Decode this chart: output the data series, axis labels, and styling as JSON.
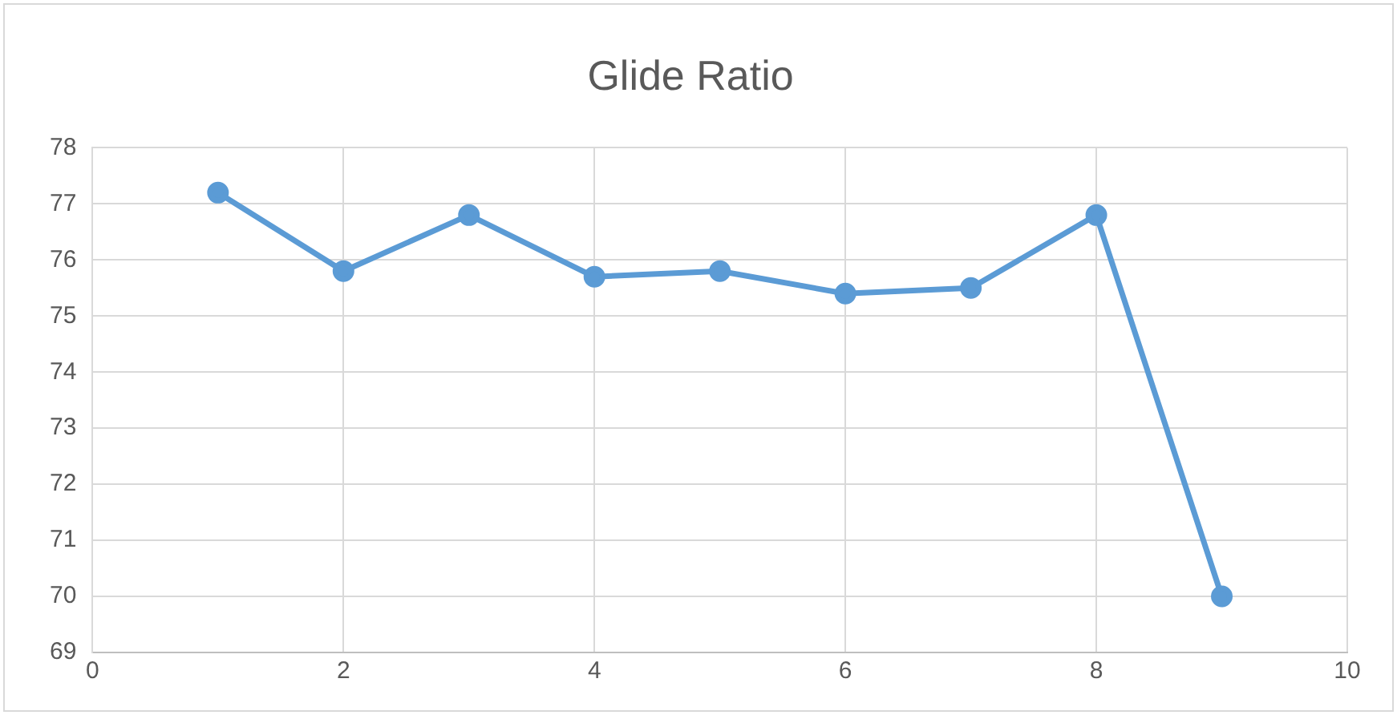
{
  "chart_data": {
    "type": "line",
    "title": "Glide Ratio",
    "x": [
      1,
      2,
      3,
      4,
      5,
      6,
      7,
      8,
      9
    ],
    "series": [
      {
        "color": "#5b9bd5",
        "values": [
          77.2,
          75.8,
          76.8,
          75.7,
          75.8,
          75.4,
          75.5,
          76.8,
          70.0
        ]
      }
    ],
    "xlim": [
      0,
      10
    ],
    "xticks": [
      0,
      2,
      4,
      6,
      8,
      10
    ],
    "ylim": [
      69,
      78
    ],
    "yticks": [
      69,
      70,
      71,
      72,
      73,
      74,
      75,
      76,
      77,
      78
    ],
    "grid": true,
    "legend": false,
    "marker": "circle",
    "line_style": "solid"
  }
}
